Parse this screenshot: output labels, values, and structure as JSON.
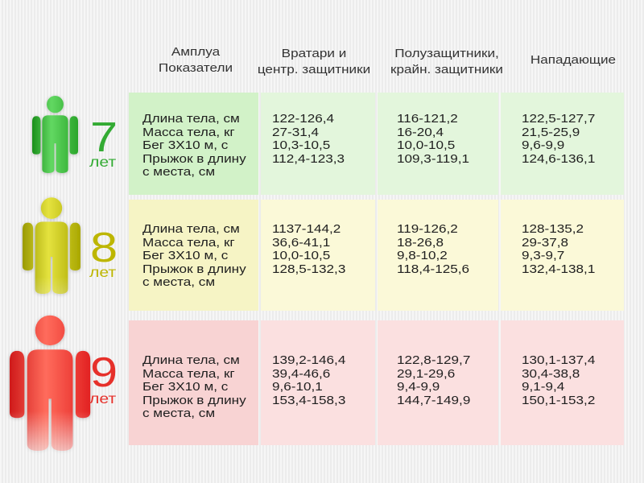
{
  "header": {
    "role": "Амплуа",
    "indicators": "Показатели",
    "goalkeepers": [
      "Вратари и",
      "центр. защитники"
    ],
    "midfielders": [
      "Полузащитники,",
      "крайн. защитники"
    ],
    "forwards": "Нападающие"
  },
  "groups": [
    {
      "age": "7",
      "unit": "лет",
      "icon": "person-icon",
      "color": "#33ab33",
      "label_cell_color": "#d2f2c8",
      "value_cell_color": "#e3f6dc",
      "indicators": [
        "Длина тела, см",
        "Масса тела, кг",
        "Бег 3Х10 м, с",
        "Прыжок в длину",
        "с места, см"
      ],
      "goalkeepers": [
        "122-126,4",
        "27-31,4",
        "10,3-10,5",
        "112,4-123,3"
      ],
      "midfielders": [
        "116-121,2",
        "16-20,4",
        "10,0-10,5",
        "109,3-119,1"
      ],
      "forwards": [
        "122,5-127,7",
        "21,5-25,9",
        "9,6-9,9",
        "124,6-136,1"
      ]
    },
    {
      "age": "8",
      "unit": "лет",
      "icon": "person-icon",
      "color": "#bdb600",
      "label_cell_color": "#f6f4c5",
      "value_cell_color": "#fbf9d8",
      "indicators": [
        "Длина тела, см",
        "Масса тела, кг",
        "Бег 3Х10 м, с",
        "Прыжок в длину",
        "с места, см"
      ],
      "goalkeepers": [
        "1137-144,2",
        "36,6-41,1",
        "10,0-10,5",
        "128,5-132,3"
      ],
      "midfielders": [
        "119-126,2",
        "18-26,8",
        "9,8-10,2",
        "118,4-125,6"
      ],
      "forwards": [
        "128-135,2",
        "29-37,8",
        "9,3-9,7",
        "132,4-138,1"
      ]
    },
    {
      "age": "9",
      "unit": "лет",
      "icon": "person-icon",
      "color": "#e6302a",
      "label_cell_color": "#f8d3d3",
      "value_cell_color": "#fbe0e0",
      "indicators": [
        "Длина тела, см",
        "Масса тела, кг",
        "Бег 3Х10 м, с",
        "Прыжок в длину",
        "с места, см"
      ],
      "goalkeepers": [
        "139,2-146,4",
        "39,4-46,6",
        "9,6-10,1",
        "153,4-158,3"
      ],
      "midfielders": [
        "122,8-129,7",
        "29,1-29,6",
        "9,4-9,9",
        "144,7-149,9"
      ],
      "forwards": [
        "130,1-137,4",
        "30,4-38,8",
        "9,1-9,4",
        "150,1-153,2"
      ]
    }
  ]
}
